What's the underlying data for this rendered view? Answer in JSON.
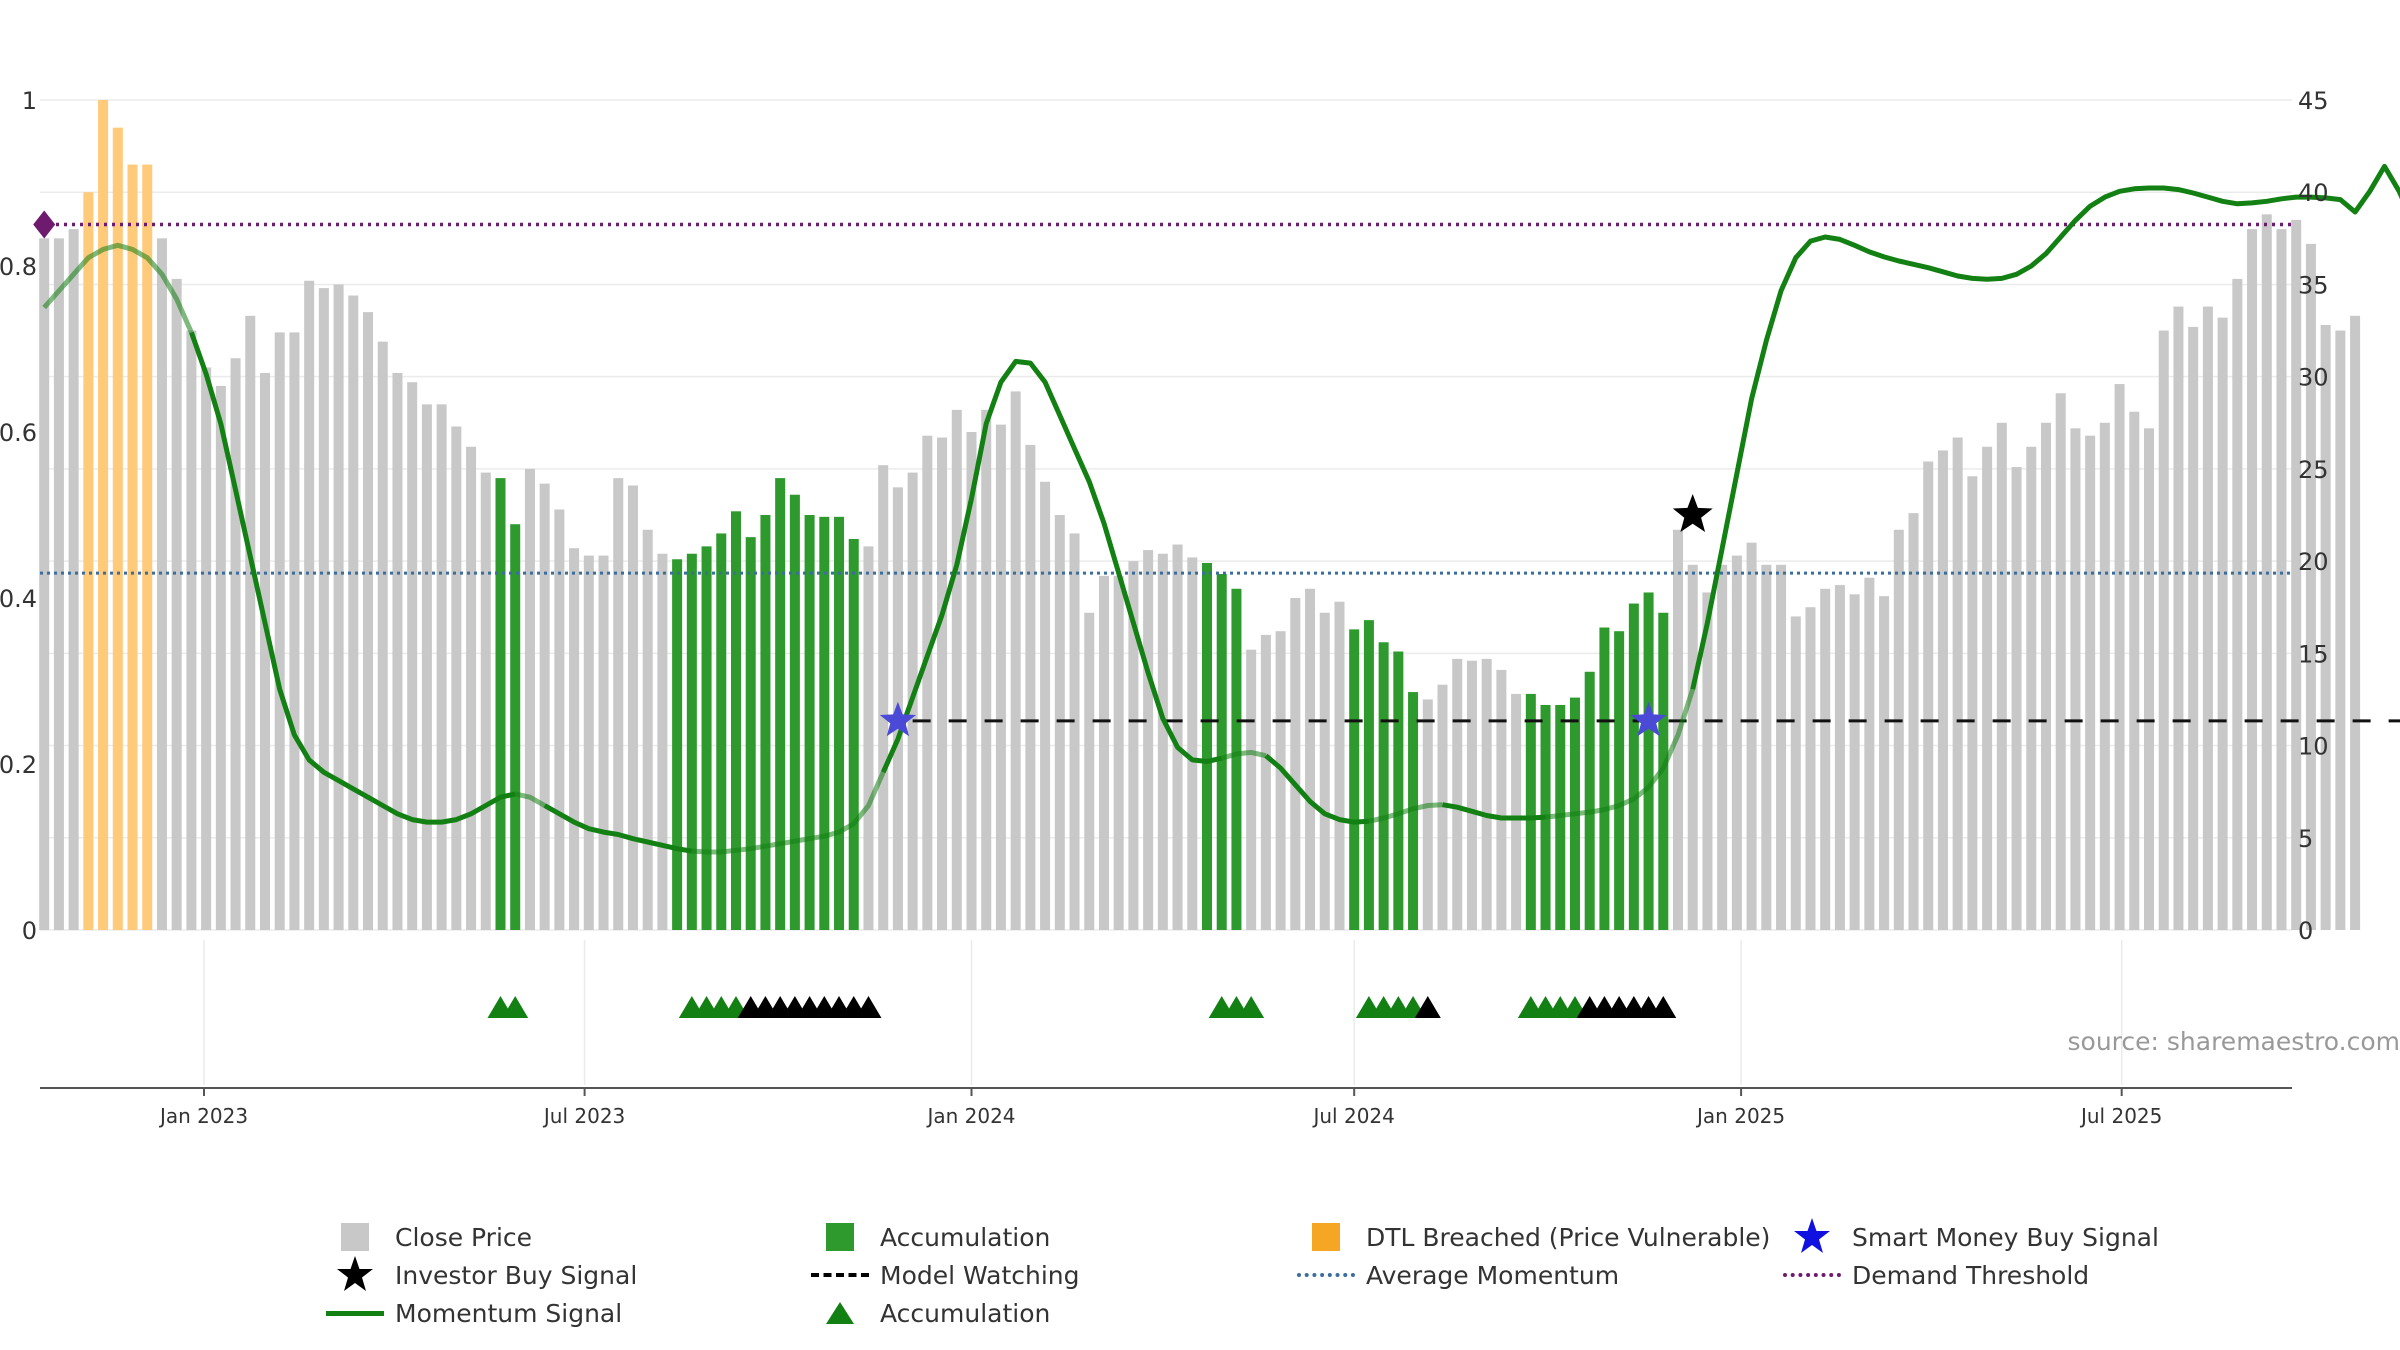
{
  "chart_data": {
    "type": "bar",
    "title": "",
    "x_axis": {
      "ticks": [
        "Jan 2023",
        "Jul 2023",
        "Jan 2024",
        "Jul 2024",
        "Jan 2025",
        "Jul 2025"
      ],
      "tick_dates": [
        "2023-01-01",
        "2023-07-01",
        "2024-01-01",
        "2024-07-01",
        "2025-01-01",
        "2025-07-01"
      ],
      "range": [
        "2022-10-15",
        "2025-09-20"
      ]
    },
    "y_left": {
      "ticks": [
        "0",
        "0.2",
        "0.4",
        "0.6",
        "0.8",
        "1"
      ],
      "range": [
        0,
        1
      ]
    },
    "y_right": {
      "ticks": [
        "0",
        "5",
        "10",
        "15",
        "20",
        "25",
        "30",
        "35",
        "40",
        "45"
      ],
      "range": [
        0,
        45
      ]
    },
    "grid": true,
    "legend_position": "bottom",
    "source_text": "source: sharemaestro.com",
    "colors": {
      "close_price": "#c8c8c8",
      "accumulation": "#2e9a2e",
      "dtl": "#ffca7a",
      "momentum": "#138013",
      "investor_star": "#000000",
      "smart_money_star": "#4a4ad6",
      "avg_momentum": "#3b6e9e",
      "demand_threshold": "#6e1a6e",
      "triangle_green": "#138013",
      "triangle_black": "#000000"
    },
    "bar_start_date": "2022-10-17",
    "bar_interval_days": 7,
    "close_price": [
      37.5,
      37.5,
      38,
      40,
      45,
      43.5,
      41.5,
      41.5,
      37.5,
      35.3,
      32.5,
      30.5,
      29.5,
      31,
      33.3,
      30.2,
      32.4,
      32.4,
      35.2,
      34.8,
      35,
      34.4,
      33.5,
      31.9,
      30.2,
      29.7,
      28.5,
      28.5,
      27.3,
      26.2,
      24.8,
      24.5,
      22,
      25,
      24.2,
      22.8,
      20.7,
      20.3,
      20.3,
      24.5,
      24.1,
      21.7,
      20.4,
      20.1,
      20.4,
      20.8,
      21.5,
      22.7,
      21.3,
      22.5,
      24.5,
      23.6,
      22.5,
      22.4,
      22.4,
      21.2,
      20.8,
      25.2,
      24,
      24.8,
      26.8,
      26.7,
      28.2,
      27,
      28.2,
      27.4,
      29.2,
      26.3,
      24.3,
      22.5,
      21.5,
      17.2,
      19.2,
      19.2,
      20,
      20.6,
      20.4,
      20.9,
      20.2,
      19.9,
      19.3,
      18.5,
      15.2,
      16,
      16.2,
      18,
      18.5,
      17.2,
      17.8,
      16.3,
      16.8,
      15.6,
      15.1,
      12.9,
      12.5,
      13.3,
      14.7,
      14.6,
      14.7,
      14.1,
      12.8,
      12.8,
      12.2,
      12.2,
      12.6,
      14,
      16.4,
      16.2,
      17.7,
      18.3,
      17.2,
      21.7,
      19.8,
      18.3,
      19.8,
      20.3,
      21,
      19.8,
      19.8,
      17,
      17.5,
      18.5,
      18.7,
      18.2,
      19.1,
      18.1,
      21.7,
      22.6,
      25.4,
      26,
      26.7,
      24.6,
      26.2,
      27.5,
      25.1,
      26.2,
      27.5,
      29.1,
      27.2,
      26.8,
      27.5,
      29.6,
      28.1,
      27.2,
      32.5,
      33.8,
      32.7,
      33.8,
      33.2,
      35.3,
      38,
      38.8,
      38,
      38.5,
      37.2,
      32.8,
      32.5,
      33.3
    ],
    "bar_state": [
      "p",
      "p",
      "p",
      "d",
      "d",
      "d",
      "d",
      "d",
      "p",
      "p",
      "p",
      "p",
      "p",
      "p",
      "p",
      "p",
      "p",
      "p",
      "p",
      "p",
      "p",
      "p",
      "p",
      "p",
      "p",
      "p",
      "p",
      "p",
      "p",
      "p",
      "p",
      "a",
      "a",
      "p",
      "p",
      "p",
      "p",
      "p",
      "p",
      "p",
      "p",
      "p",
      "p",
      "a",
      "a",
      "a",
      "a",
      "a",
      "a",
      "a",
      "a",
      "a",
      "a",
      "a",
      "a",
      "a",
      "p",
      "p",
      "p",
      "p",
      "p",
      "p",
      "p",
      "p",
      "p",
      "p",
      "p",
      "p",
      "p",
      "p",
      "p",
      "p",
      "p",
      "p",
      "p",
      "p",
      "p",
      "p",
      "p",
      "a",
      "a",
      "a",
      "p",
      "p",
      "p",
      "p",
      "p",
      "p",
      "p",
      "a",
      "a",
      "a",
      "a",
      "a",
      "p",
      "p",
      "p",
      "p",
      "p",
      "p",
      "p",
      "a",
      "a",
      "a",
      "a",
      "a",
      "a",
      "a",
      "a",
      "a",
      "a",
      "p",
      "p",
      "p",
      "p",
      "p",
      "p",
      "p",
      "p",
      "p",
      "p",
      "p",
      "p",
      "p",
      "p",
      "p",
      "p",
      "p",
      "p",
      "p",
      "p",
      "p",
      "p",
      "p",
      "p",
      "p",
      "p",
      "p",
      "p",
      "p",
      "p",
      "p",
      "p",
      "p",
      "p",
      "p",
      "p",
      "p",
      "p",
      "p",
      "p",
      "p",
      "p",
      "p",
      "p",
      "p",
      "p",
      "p",
      "p",
      "p",
      "p",
      "p"
    ],
    "momentum_signal": [
      [
        0,
        0.75
      ],
      [
        1,
        0.77
      ],
      [
        2,
        0.79
      ],
      [
        3,
        0.81
      ],
      [
        4,
        0.82
      ],
      [
        5,
        0.825
      ],
      [
        6,
        0.82
      ],
      [
        7,
        0.81
      ],
      [
        8,
        0.79
      ],
      [
        9,
        0.76
      ],
      [
        10,
        0.72
      ],
      [
        11,
        0.67
      ],
      [
        12,
        0.61
      ],
      [
        13,
        0.53
      ],
      [
        14,
        0.45
      ],
      [
        15,
        0.37
      ],
      [
        16,
        0.29
      ],
      [
        17,
        0.235
      ],
      [
        18,
        0.205
      ],
      [
        19,
        0.19
      ],
      [
        20,
        0.18
      ],
      [
        21,
        0.17
      ],
      [
        22,
        0.16
      ],
      [
        23,
        0.15
      ],
      [
        24,
        0.14
      ],
      [
        25,
        0.133
      ],
      [
        26,
        0.13
      ],
      [
        27,
        0.13
      ],
      [
        28,
        0.133
      ],
      [
        29,
        0.14
      ],
      [
        30,
        0.15
      ],
      [
        31,
        0.16
      ],
      [
        32,
        0.164
      ],
      [
        33,
        0.16
      ],
      [
        34,
        0.15
      ],
      [
        35,
        0.14
      ],
      [
        36,
        0.13
      ],
      [
        37,
        0.122
      ],
      [
        38,
        0.118
      ],
      [
        39,
        0.115
      ],
      [
        40,
        0.11
      ],
      [
        41,
        0.106
      ],
      [
        42,
        0.102
      ],
      [
        43,
        0.098
      ],
      [
        44,
        0.095
      ],
      [
        45,
        0.094
      ],
      [
        46,
        0.094
      ],
      [
        47,
        0.096
      ],
      [
        48,
        0.098
      ],
      [
        49,
        0.101
      ],
      [
        50,
        0.104
      ],
      [
        51,
        0.107
      ],
      [
        52,
        0.11
      ],
      [
        53,
        0.113
      ],
      [
        54,
        0.118
      ],
      [
        55,
        0.128
      ],
      [
        56,
        0.15
      ],
      [
        57,
        0.19
      ],
      [
        58,
        0.23
      ],
      [
        59,
        0.28
      ],
      [
        60,
        0.33
      ],
      [
        61,
        0.38
      ],
      [
        62,
        0.44
      ],
      [
        63,
        0.52
      ],
      [
        64,
        0.61
      ],
      [
        65,
        0.66
      ],
      [
        66,
        0.685
      ],
      [
        67,
        0.683
      ],
      [
        68,
        0.66
      ],
      [
        69,
        0.62
      ],
      [
        70,
        0.58
      ],
      [
        71,
        0.54
      ],
      [
        72,
        0.49
      ],
      [
        73,
        0.43
      ],
      [
        74,
        0.37
      ],
      [
        75,
        0.31
      ],
      [
        76,
        0.255
      ],
      [
        77,
        0.22
      ],
      [
        78,
        0.205
      ],
      [
        79,
        0.203
      ],
      [
        80,
        0.207
      ],
      [
        81,
        0.212
      ],
      [
        82,
        0.214
      ],
      [
        83,
        0.21
      ],
      [
        84,
        0.195
      ],
      [
        85,
        0.175
      ],
      [
        86,
        0.155
      ],
      [
        87,
        0.14
      ],
      [
        88,
        0.133
      ],
      [
        89,
        0.13
      ],
      [
        90,
        0.131
      ],
      [
        91,
        0.135
      ],
      [
        92,
        0.14
      ],
      [
        93,
        0.146
      ],
      [
        94,
        0.15
      ],
      [
        95,
        0.151
      ],
      [
        96,
        0.148
      ],
      [
        97,
        0.143
      ],
      [
        98,
        0.138
      ],
      [
        99,
        0.135
      ],
      [
        100,
        0.135
      ],
      [
        101,
        0.135
      ],
      [
        102,
        0.136
      ],
      [
        103,
        0.138
      ],
      [
        104,
        0.14
      ],
      [
        105,
        0.142
      ],
      [
        106,
        0.145
      ],
      [
        107,
        0.15
      ],
      [
        108,
        0.158
      ],
      [
        109,
        0.172
      ],
      [
        110,
        0.195
      ],
      [
        111,
        0.235
      ],
      [
        112,
        0.29
      ],
      [
        113,
        0.37
      ],
      [
        114,
        0.46
      ],
      [
        115,
        0.55
      ],
      [
        116,
        0.64
      ],
      [
        117,
        0.71
      ],
      [
        118,
        0.77
      ],
      [
        119,
        0.81
      ],
      [
        120,
        0.83
      ],
      [
        121,
        0.835
      ],
      [
        122,
        0.832
      ],
      [
        123,
        0.825
      ],
      [
        124,
        0.817
      ],
      [
        125,
        0.811
      ],
      [
        126,
        0.806
      ],
      [
        127,
        0.802
      ],
      [
        128,
        0.798
      ],
      [
        129,
        0.793
      ],
      [
        130,
        0.788
      ],
      [
        131,
        0.785
      ],
      [
        132,
        0.784
      ],
      [
        133,
        0.785
      ],
      [
        134,
        0.79
      ],
      [
        135,
        0.8
      ],
      [
        136,
        0.815
      ],
      [
        137,
        0.835
      ],
      [
        138,
        0.855
      ],
      [
        139,
        0.872
      ],
      [
        140,
        0.883
      ],
      [
        141,
        0.89
      ],
      [
        142,
        0.893
      ],
      [
        143,
        0.894
      ],
      [
        144,
        0.894
      ],
      [
        145,
        0.892
      ],
      [
        146,
        0.888
      ],
      [
        147,
        0.883
      ],
      [
        148,
        0.878
      ],
      [
        149,
        0.875
      ],
      [
        150,
        0.876
      ],
      [
        151,
        0.878
      ],
      [
        152,
        0.881
      ],
      [
        153,
        0.883
      ],
      [
        154,
        0.883
      ],
      [
        155,
        0.882
      ],
      [
        156,
        0.88
      ],
      [
        157,
        0.865
      ],
      [
        158,
        0.89
      ],
      [
        159,
        0.92
      ],
      [
        160,
        0.89
      ],
      [
        161,
        0.85
      ],
      [
        162,
        0.848
      ],
      [
        163,
        0.852
      ]
    ],
    "momentum_faded_ranges": [
      [
        0,
        9
      ],
      [
        31,
        33
      ],
      [
        43,
        56
      ],
      [
        79,
        82
      ],
      [
        89,
        94
      ],
      [
        101,
        111
      ]
    ],
    "model_watching": {
      "value": 0.252,
      "from_index": 59,
      "to_index": 163
    },
    "average_momentum": 0.43,
    "demand_threshold": 0.85,
    "smart_money_buy_signals": [
      [
        58,
        0.252
      ],
      [
        109,
        0.252
      ]
    ],
    "investor_buy_signals": [
      [
        112,
        0.5
      ]
    ],
    "demand_marker": [
      0,
      0.85
    ],
    "accumulation_triangles": [
      {
        "i": 31,
        "c": "green"
      },
      {
        "i": 32,
        "c": "green"
      },
      {
        "i": 44,
        "c": "green"
      },
      {
        "i": 45,
        "c": "green"
      },
      {
        "i": 46,
        "c": "green"
      },
      {
        "i": 47,
        "c": "green"
      },
      {
        "i": 48,
        "c": "black"
      },
      {
        "i": 49,
        "c": "black"
      },
      {
        "i": 50,
        "c": "black"
      },
      {
        "i": 51,
        "c": "black"
      },
      {
        "i": 52,
        "c": "black"
      },
      {
        "i": 53,
        "c": "black"
      },
      {
        "i": 54,
        "c": "black"
      },
      {
        "i": 55,
        "c": "black"
      },
      {
        "i": 56,
        "c": "black"
      },
      {
        "i": 80,
        "c": "green"
      },
      {
        "i": 81,
        "c": "green"
      },
      {
        "i": 82,
        "c": "green"
      },
      {
        "i": 90,
        "c": "green"
      },
      {
        "i": 91,
        "c": "green"
      },
      {
        "i": 92,
        "c": "green"
      },
      {
        "i": 93,
        "c": "green"
      },
      {
        "i": 94,
        "c": "black"
      },
      {
        "i": 101,
        "c": "green"
      },
      {
        "i": 102,
        "c": "green"
      },
      {
        "i": 103,
        "c": "green"
      },
      {
        "i": 104,
        "c": "green"
      },
      {
        "i": 105,
        "c": "black"
      },
      {
        "i": 106,
        "c": "black"
      },
      {
        "i": 107,
        "c": "black"
      },
      {
        "i": 108,
        "c": "black"
      },
      {
        "i": 109,
        "c": "black"
      },
      {
        "i": 110,
        "c": "black"
      }
    ]
  },
  "legend": {
    "close_price": "Close Price",
    "accumulation": "Accumulation",
    "dtl_breached": "DTL Breached (Price Vulnerable)",
    "smart_money_buy_signal": "Smart Money Buy Signal",
    "investor_buy_signal": "Investor Buy Signal",
    "model_watching": "Model Watching",
    "average_momentum": "Average Momentum",
    "demand_threshold": "Demand Threshold",
    "momentum_signal": "Momentum Signal",
    "accumulation_triangle": "Accumulation"
  }
}
